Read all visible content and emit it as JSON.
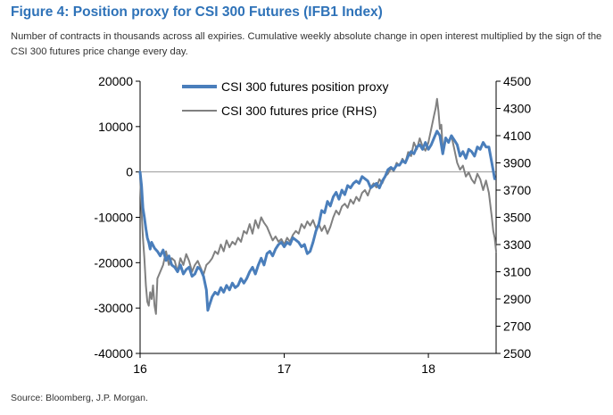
{
  "title": "Figure 4: Position proxy for CSI 300 Futures (IFB1 Index)",
  "subtitle": "Number of contracts in thousands across all expiries. Cumulative weekly absolute change in open interest multiplied by the sign of the CSI 300 futures price change every day.",
  "source": "Source: Bloomberg, J.P. Morgan.",
  "chart_data": {
    "type": "line",
    "x_unit": "year (2016-2018.5)",
    "xlim": [
      2016.0,
      2018.47
    ],
    "x_ticks": [
      {
        "v": 2016,
        "label": "16"
      },
      {
        "v": 2017,
        "label": "17"
      },
      {
        "v": 2018,
        "label": "18"
      }
    ],
    "y_left": {
      "range": [
        -40000,
        20000
      ],
      "ticks": [
        -40000,
        -30000,
        -20000,
        -10000,
        0,
        10000,
        20000
      ],
      "labels": [
        "-40000",
        "-30000",
        "-20000",
        "-10000",
        "0",
        "10000",
        "20000"
      ]
    },
    "y_right": {
      "range": [
        2500,
        4500
      ],
      "ticks": [
        2500,
        2700,
        2900,
        3100,
        3300,
        3500,
        3700,
        3900,
        4100,
        4300,
        4500
      ],
      "labels": [
        "2500",
        "2700",
        "2900",
        "3100",
        "3300",
        "3500",
        "3700",
        "3900",
        "4100",
        "4300",
        "4500"
      ]
    },
    "zero_line": 0,
    "legend_position": "top-center",
    "series": [
      {
        "name": "CSI 300 futures position proxy",
        "axis": "left",
        "color": "#4a7ebb",
        "points": [
          [
            2016.0,
            0
          ],
          [
            2016.01,
            -3000
          ],
          [
            2016.02,
            -8000
          ],
          [
            2016.03,
            -10000
          ],
          [
            2016.04,
            -12500
          ],
          [
            2016.05,
            -14500
          ],
          [
            2016.06,
            -15500
          ],
          [
            2016.07,
            -17000
          ],
          [
            2016.08,
            -15500
          ],
          [
            2016.1,
            -16800
          ],
          [
            2016.12,
            -17500
          ],
          [
            2016.14,
            -18500
          ],
          [
            2016.16,
            -17200
          ],
          [
            2016.18,
            -19500
          ],
          [
            2016.2,
            -18500
          ],
          [
            2016.22,
            -20500
          ],
          [
            2016.24,
            -21000
          ],
          [
            2016.26,
            -22000
          ],
          [
            2016.28,
            -20500
          ],
          [
            2016.3,
            -22500
          ],
          [
            2016.32,
            -21500
          ],
          [
            2016.34,
            -21000
          ],
          [
            2016.36,
            -23000
          ],
          [
            2016.38,
            -22500
          ],
          [
            2016.4,
            -21000
          ],
          [
            2016.42,
            -21500
          ],
          [
            2016.44,
            -23000
          ],
          [
            2016.46,
            -26000
          ],
          [
            2016.47,
            -30500
          ],
          [
            2016.48,
            -29500
          ],
          [
            2016.5,
            -27500
          ],
          [
            2016.52,
            -26500
          ],
          [
            2016.54,
            -27000
          ],
          [
            2016.56,
            -25500
          ],
          [
            2016.58,
            -26500
          ],
          [
            2016.6,
            -25000
          ],
          [
            2016.62,
            -26000
          ],
          [
            2016.64,
            -24500
          ],
          [
            2016.66,
            -25500
          ],
          [
            2016.68,
            -25000
          ],
          [
            2016.7,
            -23500
          ],
          [
            2016.72,
            -24500
          ],
          [
            2016.74,
            -23500
          ],
          [
            2016.76,
            -22000
          ],
          [
            2016.78,
            -21000
          ],
          [
            2016.8,
            -22500
          ],
          [
            2016.82,
            -20500
          ],
          [
            2016.84,
            -19000
          ],
          [
            2016.86,
            -20500
          ],
          [
            2016.88,
            -18000
          ],
          [
            2016.9,
            -17500
          ],
          [
            2016.92,
            -18500
          ],
          [
            2016.94,
            -17000
          ],
          [
            2016.96,
            -16000
          ],
          [
            2016.98,
            -15500
          ],
          [
            2017.0,
            -16500
          ],
          [
            2017.02,
            -15500
          ],
          [
            2017.04,
            -16000
          ],
          [
            2017.06,
            -14500
          ],
          [
            2017.08,
            -15000
          ],
          [
            2017.1,
            -15500
          ],
          [
            2017.12,
            -16500
          ],
          [
            2017.14,
            -16000
          ],
          [
            2017.16,
            -18000
          ],
          [
            2017.18,
            -17500
          ],
          [
            2017.2,
            -15500
          ],
          [
            2017.22,
            -13000
          ],
          [
            2017.24,
            -11500
          ],
          [
            2017.26,
            -8500
          ],
          [
            2017.28,
            -9000
          ],
          [
            2017.3,
            -6500
          ],
          [
            2017.32,
            -7500
          ],
          [
            2017.34,
            -5500
          ],
          [
            2017.36,
            -4500
          ],
          [
            2017.38,
            -6000
          ],
          [
            2017.4,
            -4000
          ],
          [
            2017.42,
            -5000
          ],
          [
            2017.44,
            -3000
          ],
          [
            2017.46,
            -3500
          ],
          [
            2017.48,
            -2500
          ],
          [
            2017.5,
            -2000
          ],
          [
            2017.52,
            -2500
          ],
          [
            2017.54,
            -1000
          ],
          [
            2017.56,
            -1500
          ],
          [
            2017.58,
            -2000
          ],
          [
            2017.6,
            -3500
          ],
          [
            2017.62,
            -3000
          ],
          [
            2017.64,
            -2500
          ],
          [
            2017.66,
            -3500
          ],
          [
            2017.68,
            -2000
          ],
          [
            2017.7,
            -1000
          ],
          [
            2017.72,
            500
          ],
          [
            2017.74,
            1000
          ],
          [
            2017.76,
            500
          ],
          [
            2017.78,
            1500
          ],
          [
            2017.8,
            1500
          ],
          [
            2017.82,
            2500
          ],
          [
            2017.84,
            2000
          ],
          [
            2017.86,
            3500
          ],
          [
            2017.88,
            4500
          ],
          [
            2017.9,
            4000
          ],
          [
            2017.92,
            5500
          ],
          [
            2017.94,
            6000
          ],
          [
            2017.96,
            5000
          ],
          [
            2017.98,
            6500
          ],
          [
            2018.0,
            5000
          ],
          [
            2018.02,
            6000
          ],
          [
            2018.04,
            7500
          ],
          [
            2018.06,
            9000
          ],
          [
            2018.08,
            8000
          ],
          [
            2018.1,
            4000
          ],
          [
            2018.12,
            7500
          ],
          [
            2018.14,
            6500
          ],
          [
            2018.16,
            8000
          ],
          [
            2018.18,
            7000
          ],
          [
            2018.2,
            6000
          ],
          [
            2018.22,
            3500
          ],
          [
            2018.24,
            4500
          ],
          [
            2018.26,
            3000
          ],
          [
            2018.28,
            5000
          ],
          [
            2018.3,
            4500
          ],
          [
            2018.32,
            3500
          ],
          [
            2018.34,
            5500
          ],
          [
            2018.36,
            5000
          ],
          [
            2018.38,
            6500
          ],
          [
            2018.4,
            5500
          ],
          [
            2018.42,
            5500
          ],
          [
            2018.44,
            2000
          ],
          [
            2018.46,
            -1500
          ]
        ]
      },
      {
        "name": "CSI 300 futures price (RHS)",
        "axis": "right",
        "color": "#808080",
        "points": [
          [
            2016.0,
            3800
          ],
          [
            2016.01,
            3550
          ],
          [
            2016.02,
            3350
          ],
          [
            2016.03,
            3200
          ],
          [
            2016.04,
            3000
          ],
          [
            2016.05,
            2880
          ],
          [
            2016.06,
            2850
          ],
          [
            2016.07,
            2950
          ],
          [
            2016.08,
            2900
          ],
          [
            2016.09,
            3000
          ],
          [
            2016.1,
            2850
          ],
          [
            2016.11,
            2790
          ],
          [
            2016.12,
            3050
          ],
          [
            2016.14,
            3100
          ],
          [
            2016.16,
            3150
          ],
          [
            2016.18,
            3250
          ],
          [
            2016.2,
            3150
          ],
          [
            2016.22,
            3200
          ],
          [
            2016.24,
            3180
          ],
          [
            2016.26,
            3100
          ],
          [
            2016.28,
            3200
          ],
          [
            2016.3,
            3150
          ],
          [
            2016.32,
            3230
          ],
          [
            2016.34,
            3180
          ],
          [
            2016.36,
            3100
          ],
          [
            2016.38,
            3150
          ],
          [
            2016.4,
            3180
          ],
          [
            2016.42,
            3130
          ],
          [
            2016.44,
            3080
          ],
          [
            2016.46,
            3150
          ],
          [
            2016.48,
            3170
          ],
          [
            2016.5,
            3200
          ],
          [
            2016.52,
            3250
          ],
          [
            2016.54,
            3230
          ],
          [
            2016.56,
            3300
          ],
          [
            2016.58,
            3250
          ],
          [
            2016.6,
            3330
          ],
          [
            2016.62,
            3280
          ],
          [
            2016.64,
            3320
          ],
          [
            2016.66,
            3300
          ],
          [
            2016.68,
            3350
          ],
          [
            2016.7,
            3320
          ],
          [
            2016.72,
            3400
          ],
          [
            2016.74,
            3380
          ],
          [
            2016.76,
            3450
          ],
          [
            2016.78,
            3380
          ],
          [
            2016.8,
            3480
          ],
          [
            2016.82,
            3420
          ],
          [
            2016.84,
            3500
          ],
          [
            2016.86,
            3460
          ],
          [
            2016.88,
            3430
          ],
          [
            2016.9,
            3380
          ],
          [
            2016.92,
            3330
          ],
          [
            2016.94,
            3360
          ],
          [
            2016.96,
            3320
          ],
          [
            2016.98,
            3340
          ],
          [
            2017.0,
            3300
          ],
          [
            2017.02,
            3350
          ],
          [
            2017.04,
            3320
          ],
          [
            2017.06,
            3370
          ],
          [
            2017.08,
            3400
          ],
          [
            2017.1,
            3380
          ],
          [
            2017.12,
            3450
          ],
          [
            2017.14,
            3420
          ],
          [
            2017.16,
            3470
          ],
          [
            2017.18,
            3440
          ],
          [
            2017.2,
            3480
          ],
          [
            2017.22,
            3420
          ],
          [
            2017.24,
            3450
          ],
          [
            2017.26,
            3400
          ],
          [
            2017.28,
            3440
          ],
          [
            2017.3,
            3380
          ],
          [
            2017.32,
            3430
          ],
          [
            2017.34,
            3500
          ],
          [
            2017.36,
            3550
          ],
          [
            2017.38,
            3520
          ],
          [
            2017.4,
            3580
          ],
          [
            2017.42,
            3600
          ],
          [
            2017.44,
            3570
          ],
          [
            2017.46,
            3630
          ],
          [
            2017.48,
            3600
          ],
          [
            2017.5,
            3650
          ],
          [
            2017.52,
            3620
          ],
          [
            2017.54,
            3680
          ],
          [
            2017.56,
            3700
          ],
          [
            2017.58,
            3660
          ],
          [
            2017.6,
            3720
          ],
          [
            2017.62,
            3750
          ],
          [
            2017.64,
            3720
          ],
          [
            2017.66,
            3780
          ],
          [
            2017.68,
            3750
          ],
          [
            2017.7,
            3800
          ],
          [
            2017.72,
            3820
          ],
          [
            2017.74,
            3860
          ],
          [
            2017.76,
            3840
          ],
          [
            2017.78,
            3900
          ],
          [
            2017.8,
            3880
          ],
          [
            2017.82,
            3930
          ],
          [
            2017.84,
            3900
          ],
          [
            2017.86,
            3980
          ],
          [
            2017.88,
            3950
          ],
          [
            2017.9,
            4050
          ],
          [
            2017.92,
            4000
          ],
          [
            2017.94,
            4080
          ],
          [
            2017.96,
            4020
          ],
          [
            2017.98,
            3990
          ],
          [
            2018.0,
            4050
          ],
          [
            2018.02,
            4150
          ],
          [
            2018.04,
            4250
          ],
          [
            2018.05,
            4300
          ],
          [
            2018.06,
            4370
          ],
          [
            2018.07,
            4280
          ],
          [
            2018.08,
            4150
          ],
          [
            2018.09,
            4180
          ],
          [
            2018.1,
            4000
          ],
          [
            2018.12,
            4080
          ],
          [
            2018.14,
            4050
          ],
          [
            2018.16,
            4100
          ],
          [
            2018.18,
            4000
          ],
          [
            2018.2,
            3900
          ],
          [
            2018.22,
            3850
          ],
          [
            2018.24,
            3880
          ],
          [
            2018.26,
            3800
          ],
          [
            2018.28,
            3830
          ],
          [
            2018.3,
            3780
          ],
          [
            2018.32,
            3750
          ],
          [
            2018.34,
            3820
          ],
          [
            2018.36,
            3780
          ],
          [
            2018.38,
            3700
          ],
          [
            2018.4,
            3770
          ],
          [
            2018.42,
            3680
          ],
          [
            2018.44,
            3500
          ],
          [
            2018.45,
            3400
          ],
          [
            2018.46,
            3350
          ],
          [
            2018.47,
            3250
          ]
        ]
      }
    ]
  }
}
